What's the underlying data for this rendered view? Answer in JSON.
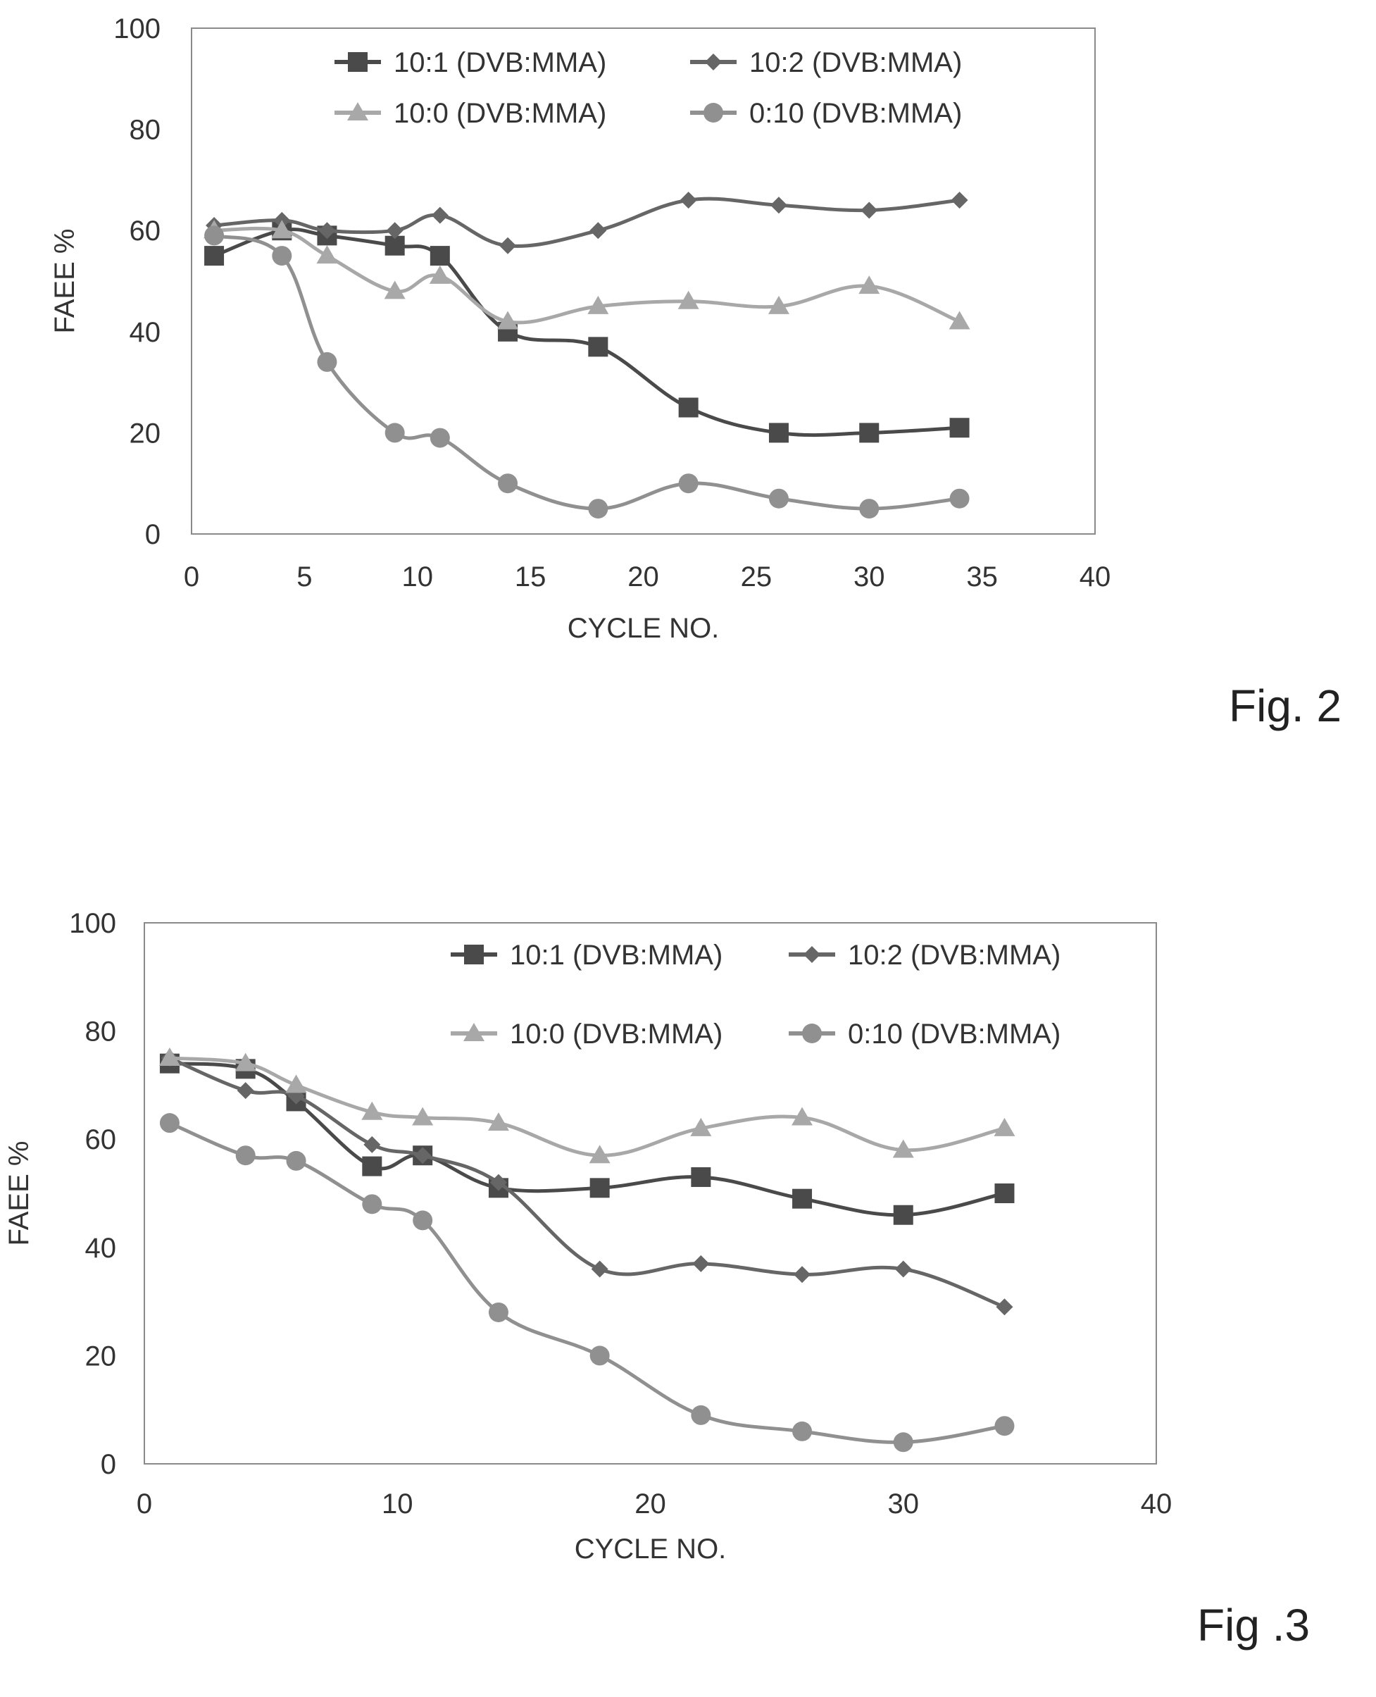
{
  "figures": [
    {
      "label": "Fig. 2",
      "chart_data": {
        "type": "line",
        "title": "",
        "xlabel": "CYCLE NO.",
        "ylabel": "FAEE %",
        "xlim": [
          0,
          40
        ],
        "ylim": [
          0,
          100
        ],
        "xticks": [
          0,
          5,
          10,
          15,
          20,
          25,
          30,
          35,
          40
        ],
        "yticks": [
          0,
          20,
          40,
          60,
          80,
          100
        ],
        "grid": false,
        "legend": "top, 2 columns",
        "series": [
          {
            "name": "10:1 (DVB:MMA)",
            "marker": "square",
            "color": "#4a4a4a",
            "x": [
              1,
              4,
              6,
              9,
              11,
              14,
              18,
              22,
              26,
              30,
              34
            ],
            "y": [
              55,
              60,
              59,
              57,
              55,
              40,
              37,
              25,
              20,
              20,
              21
            ]
          },
          {
            "name": "10:2 (DVB:MMA)",
            "marker": "diamond",
            "color": "#666666",
            "x": [
              1,
              4,
              6,
              9,
              11,
              14,
              18,
              22,
              26,
              30,
              34
            ],
            "y": [
              61,
              62,
              60,
              60,
              63,
              57,
              60,
              66,
              65,
              64,
              66
            ]
          },
          {
            "name": "10:0 (DVB:MMA)",
            "marker": "triangle",
            "color": "#a8a8a8",
            "x": [
              1,
              4,
              6,
              9,
              11,
              14,
              18,
              22,
              26,
              30,
              34
            ],
            "y": [
              60,
              60,
              55,
              48,
              51,
              42,
              45,
              46,
              45,
              49,
              42
            ]
          },
          {
            "name": "0:10 (DVB:MMA)",
            "marker": "circle",
            "color": "#909090",
            "x": [
              1,
              4,
              6,
              9,
              11,
              14,
              18,
              22,
              26,
              30,
              34
            ],
            "y": [
              59,
              55,
              34,
              20,
              19,
              10,
              5,
              10,
              7,
              5,
              7
            ]
          }
        ]
      }
    },
    {
      "label": "Fig .3",
      "chart_data": {
        "type": "line",
        "title": "",
        "xlabel": "CYCLE NO.",
        "ylabel": "FAEE %",
        "xlim": [
          0,
          40
        ],
        "ylim": [
          0,
          100
        ],
        "xticks": [
          0,
          10,
          20,
          30,
          40
        ],
        "yticks": [
          0,
          20,
          40,
          60,
          80,
          100
        ],
        "grid": false,
        "legend": "top-right, 2 columns",
        "series": [
          {
            "name": "10:1 (DVB:MMA)",
            "marker": "square",
            "color": "#4a4a4a",
            "x": [
              1,
              4,
              6,
              9,
              11,
              14,
              18,
              22,
              26,
              30,
              34
            ],
            "y": [
              74,
              73,
              67,
              55,
              57,
              51,
              51,
              53,
              49,
              46,
              50
            ]
          },
          {
            "name": "10:2 (DVB:MMA)",
            "marker": "diamond",
            "color": "#666666",
            "x": [
              1,
              4,
              6,
              9,
              11,
              14,
              18,
              22,
              26,
              30,
              34
            ],
            "y": [
              75,
              69,
              68,
              59,
              57,
              52,
              36,
              37,
              35,
              36,
              29
            ]
          },
          {
            "name": "10:0 (DVB:MMA)",
            "marker": "triangle",
            "color": "#a8a8a8",
            "x": [
              1,
              4,
              6,
              9,
              11,
              14,
              18,
              22,
              26,
              30,
              34
            ],
            "y": [
              75,
              74,
              70,
              65,
              64,
              63,
              57,
              62,
              64,
              58,
              62
            ]
          },
          {
            "name": "0:10 (DVB:MMA)",
            "marker": "circle",
            "color": "#909090",
            "x": [
              1,
              4,
              6,
              9,
              11,
              14,
              18,
              22,
              26,
              30,
              34
            ],
            "y": [
              63,
              57,
              56,
              48,
              45,
              28,
              20,
              9,
              6,
              4,
              7
            ]
          }
        ]
      }
    }
  ]
}
